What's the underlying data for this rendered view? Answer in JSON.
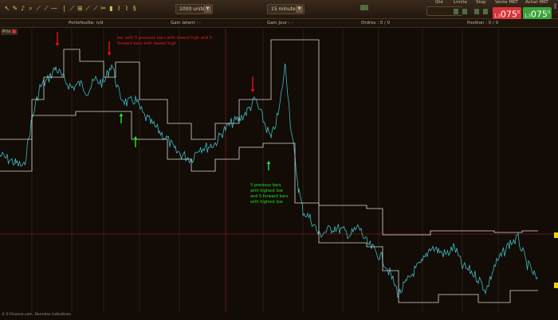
{
  "toolbar": {
    "icons": [
      "pointer-icon",
      "pencil-icon",
      "bell-icon",
      "zoom-icon",
      "line-icon",
      "ray-icon",
      "horizontal-line-icon",
      "vertical-line-icon",
      "channel-icon",
      "grid-icon",
      "fibonacci-icon",
      "fan-icon",
      "tools-icon",
      "trash-icon",
      "indicator-icon",
      "strategy-icon",
      "pattern-icon"
    ],
    "units_select": "1000 unités",
    "interval_select": "15 minutes",
    "layout_icon": "chart-layout-icon"
  },
  "order": {
    "qty_label": "Qté",
    "qty_value": "1",
    "limit_label": "Limite",
    "stop_label": "Stop",
    "sell_label": "Vente MKT",
    "sell_prefix": "1,3",
    "sell_price": "075",
    "sell_sup": "0",
    "buy_label": "Achat MKT",
    "buy_prefix": "1,3",
    "buy_price": "075",
    "buy_sup": "0",
    "sell_color": "#d9343a",
    "buy_color": "#3aa33a"
  },
  "infobar": {
    "portfolio": "Portefeuille: n/d",
    "gain_latent": "Gain latent : -",
    "gain_jour": "Gain Jour : -",
    "orders": "Ordres : 0 / 0",
    "position": "Position : 0 / 0"
  },
  "chart": {
    "label": "Prix",
    "annotation_red": "bar with 5 previous bars with lowest high and 5 forward bars with lowest high",
    "annotation_green_lines": [
      "5 previous bars",
      "with highest low",
      "and 5 forward bars",
      "with highest low"
    ],
    "price_color": "#3fb8c0",
    "envelope_color": "#d8d8d8",
    "down_arrow_color": "#e01010",
    "up_arrow_color": "#20e020"
  },
  "chart_data": {
    "type": "line",
    "xlabel": "",
    "ylabel": "",
    "series": [
      {
        "values": [
          [
            0,
            205
          ],
          [
            20,
            195
          ],
          [
            30,
            190
          ],
          [
            40,
            250
          ],
          [
            50,
            290
          ],
          [
            60,
            300
          ],
          [
            70,
            315
          ],
          [
            80,
            300
          ],
          [
            90,
            290
          ],
          [
            100,
            295
          ],
          [
            110,
            285
          ],
          [
            120,
            300
          ],
          [
            130,
            295
          ],
          [
            140,
            320
          ],
          [
            150,
            280
          ],
          [
            160,
            270
          ],
          [
            170,
            275
          ],
          [
            180,
            255
          ],
          [
            190,
            245
          ],
          [
            200,
            235
          ],
          [
            210,
            225
          ],
          [
            220,
            210
          ],
          [
            230,
            205
          ],
          [
            240,
            200
          ],
          [
            250,
            215
          ],
          [
            260,
            215
          ],
          [
            270,
            220
          ],
          [
            280,
            235
          ],
          [
            290,
            245
          ],
          [
            300,
            250
          ],
          [
            310,
            260
          ],
          [
            320,
            275
          ],
          [
            330,
            250
          ],
          [
            340,
            225
          ],
          [
            350,
            260
          ],
          [
            358,
            320
          ],
          [
            365,
            240
          ],
          [
            370,
            200
          ],
          [
            375,
            160
          ],
          [
            380,
            135
          ],
          [
            390,
            125
          ],
          [
            400,
            105
          ],
          [
            410,
            110
          ],
          [
            420,
            115
          ],
          [
            430,
            110
          ],
          [
            440,
            105
          ],
          [
            450,
            115
          ],
          [
            460,
            95
          ],
          [
            470,
            85
          ],
          [
            480,
            75
          ],
          [
            490,
            55
          ],
          [
            500,
            30
          ],
          [
            510,
            45
          ],
          [
            520,
            60
          ],
          [
            530,
            70
          ],
          [
            540,
            90
          ],
          [
            550,
            85
          ],
          [
            560,
            80
          ],
          [
            570,
            90
          ],
          [
            580,
            65
          ],
          [
            590,
            60
          ],
          [
            600,
            50
          ],
          [
            610,
            35
          ],
          [
            620,
            65
          ],
          [
            630,
            80
          ],
          [
            640,
            95
          ],
          [
            650,
            100
          ],
          [
            660,
            70
          ],
          [
            670,
            55
          ],
          [
            675,
            45
          ]
        ]
      },
      {
        "values": [
          [
            0,
            225
          ],
          [
            40,
            275
          ],
          [
            55,
            303
          ],
          [
            80,
            338
          ],
          [
            100,
            323
          ],
          [
            130,
            303
          ],
          [
            145,
            322
          ],
          [
            175,
            275
          ],
          [
            210,
            245
          ],
          [
            240,
            225
          ],
          [
            270,
            245
          ],
          [
            300,
            275
          ],
          [
            340,
            350
          ],
          [
            400,
            142
          ],
          [
            460,
            138
          ],
          [
            480,
            105
          ],
          [
            540,
            110
          ],
          [
            620,
            108
          ],
          [
            655,
            110
          ],
          [
            675,
            110
          ]
        ]
      },
      {
        "values": [
          [
            0,
            185
          ],
          [
            40,
            255
          ],
          [
            95,
            260
          ],
          [
            130,
            260
          ],
          [
            165,
            225
          ],
          [
            210,
            200
          ],
          [
            240,
            185
          ],
          [
            270,
            200
          ],
          [
            300,
            215
          ],
          [
            330,
            220
          ],
          [
            370,
            145
          ],
          [
            400,
            95
          ],
          [
            460,
            90
          ],
          [
            480,
            60
          ],
          [
            500,
            20
          ],
          [
            550,
            30
          ],
          [
            600,
            20
          ],
          [
            640,
            35
          ],
          [
            675,
            35
          ]
        ]
      }
    ]
  },
  "footer": "© E-Finance.com. Données indicatives"
}
